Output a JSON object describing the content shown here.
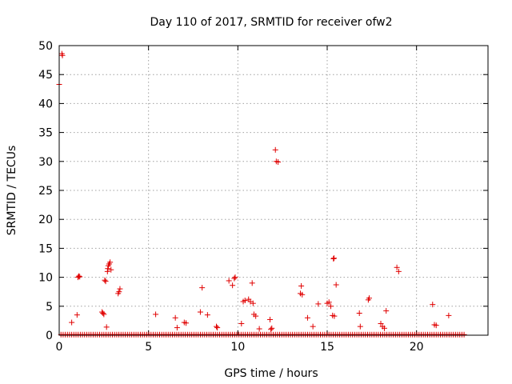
{
  "chart_data": {
    "type": "scatter",
    "title": "Day 110 of 2017, SRMTID for receiver ofw2",
    "xlabel": "GPS time / hours",
    "ylabel": "SRMTID / TECUs",
    "xlim": [
      0,
      24
    ],
    "ylim": [
      0,
      50
    ],
    "xticks": [
      0,
      5,
      10,
      15,
      20
    ],
    "yticks": [
      0,
      5,
      10,
      15,
      20,
      25,
      30,
      35,
      40,
      45,
      50
    ],
    "grid": true,
    "legend": "none",
    "marker": "plus",
    "color": "#e00000",
    "series": [
      {
        "baseline": {
          "x_start": 0.1,
          "x_end": 22.7,
          "step": 0.12,
          "y": 0.1
        },
        "points": [
          [
            0.0,
            43.3
          ],
          [
            0.15,
            48.6
          ],
          [
            0.18,
            48.3
          ],
          [
            0.7,
            2.2
          ],
          [
            1.0,
            3.5
          ],
          [
            1.05,
            10.0
          ],
          [
            1.1,
            10.2
          ],
          [
            1.15,
            10.1
          ],
          [
            2.4,
            4.0
          ],
          [
            2.45,
            3.8
          ],
          [
            2.5,
            3.6
          ],
          [
            2.55,
            9.5
          ],
          [
            2.6,
            9.3
          ],
          [
            2.65,
            1.4
          ],
          [
            2.7,
            11.0
          ],
          [
            2.72,
            11.5
          ],
          [
            2.75,
            12.0
          ],
          [
            2.8,
            12.3
          ],
          [
            2.85,
            12.6
          ],
          [
            2.9,
            11.3
          ],
          [
            3.3,
            7.2
          ],
          [
            3.35,
            7.5
          ],
          [
            3.4,
            8.0
          ],
          [
            5.4,
            3.6
          ],
          [
            6.5,
            3.0
          ],
          [
            6.6,
            1.3
          ],
          [
            7.0,
            2.2
          ],
          [
            7.1,
            2.1
          ],
          [
            7.9,
            4.0
          ],
          [
            8.0,
            8.2
          ],
          [
            8.3,
            3.5
          ],
          [
            8.8,
            1.5
          ],
          [
            8.85,
            1.3
          ],
          [
            9.5,
            9.4
          ],
          [
            9.7,
            8.6
          ],
          [
            9.8,
            9.8
          ],
          [
            9.85,
            10.0
          ],
          [
            10.2,
            2.0
          ],
          [
            10.3,
            5.8
          ],
          [
            10.4,
            6.0
          ],
          [
            10.6,
            6.2
          ],
          [
            10.7,
            5.8
          ],
          [
            10.8,
            9.0
          ],
          [
            10.85,
            5.5
          ],
          [
            10.9,
            3.6
          ],
          [
            11.0,
            3.3
          ],
          [
            11.2,
            1.1
          ],
          [
            11.8,
            2.7
          ],
          [
            11.85,
            1.0
          ],
          [
            11.9,
            1.2
          ],
          [
            12.1,
            32.0
          ],
          [
            12.15,
            30.0
          ],
          [
            12.25,
            29.9
          ],
          [
            13.5,
            7.2
          ],
          [
            13.55,
            8.5
          ],
          [
            13.6,
            7.0
          ],
          [
            13.9,
            3.0
          ],
          [
            14.2,
            1.5
          ],
          [
            14.5,
            5.4
          ],
          [
            15.0,
            5.5
          ],
          [
            15.1,
            5.7
          ],
          [
            15.2,
            5.0
          ],
          [
            15.3,
            3.4
          ],
          [
            15.4,
            3.3
          ],
          [
            15.35,
            13.2
          ],
          [
            15.38,
            13.3
          ],
          [
            15.5,
            8.7
          ],
          [
            16.8,
            3.8
          ],
          [
            16.85,
            1.5
          ],
          [
            17.3,
            6.1
          ],
          [
            17.35,
            6.4
          ],
          [
            18.0,
            2.0
          ],
          [
            18.1,
            1.5
          ],
          [
            18.2,
            1.2
          ],
          [
            18.3,
            4.2
          ],
          [
            18.9,
            11.7
          ],
          [
            19.0,
            11.0
          ],
          [
            20.9,
            5.3
          ],
          [
            21.0,
            1.8
          ],
          [
            21.1,
            1.7
          ],
          [
            21.8,
            3.4
          ]
        ]
      }
    ]
  }
}
